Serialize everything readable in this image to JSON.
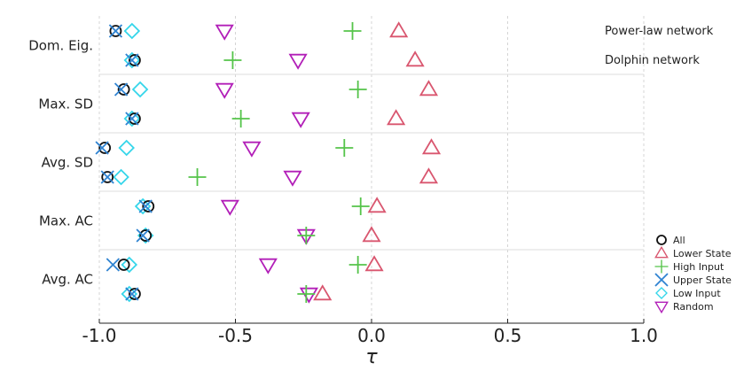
{
  "chart_data": {
    "type": "scatter",
    "title": "",
    "xlabel": "τ",
    "xlim": [
      -1.0,
      1.0
    ],
    "xticks": [
      -1.0,
      -0.5,
      0.0,
      0.5,
      1.0
    ],
    "xtick_labels": [
      "-1.0",
      "-0.5",
      "0.0",
      "0.5",
      "1.0"
    ],
    "grid": "vertical dashed",
    "legend_position": "bottom-right",
    "panel_labels": [
      "Power-law network",
      "Dolphin network"
    ],
    "categories": [
      "Dom. Eig.",
      "Max. SD",
      "Avg. SD",
      "Max. AC",
      "Avg. AC"
    ],
    "networks": [
      "Power-law network",
      "Dolphin network"
    ],
    "series": [
      {
        "name": "All",
        "marker": "circle",
        "color": "#111111",
        "values": {
          "Dom. Eig.": [
            -0.94,
            -0.87
          ],
          "Max. SD": [
            -0.91,
            -0.87
          ],
          "Avg. SD": [
            -0.98,
            -0.97
          ],
          "Max. AC": [
            -0.82,
            -0.83
          ],
          "Avg. AC": [
            -0.91,
            -0.87
          ]
        }
      },
      {
        "name": "Lower State",
        "marker": "triangle-up",
        "color": "#d9566f",
        "values": {
          "Dom. Eig.": [
            0.1,
            0.16
          ],
          "Max. SD": [
            0.21,
            0.09
          ],
          "Avg. SD": [
            0.22,
            0.21
          ],
          "Max. AC": [
            0.02,
            0.0
          ],
          "Avg. AC": [
            0.01,
            -0.18
          ]
        }
      },
      {
        "name": "High Input",
        "marker": "plus",
        "color": "#55c44a",
        "values": {
          "Dom. Eig.": [
            -0.07,
            -0.51
          ],
          "Max. SD": [
            -0.05,
            -0.48
          ],
          "Avg. SD": [
            -0.1,
            -0.64
          ],
          "Max. AC": [
            -0.04,
            -0.24
          ],
          "Avg. AC": [
            -0.05,
            -0.24
          ]
        }
      },
      {
        "name": "Upper State",
        "marker": "x",
        "color": "#2f83d1",
        "values": {
          "Dom. Eig.": [
            -0.94,
            -0.88
          ],
          "Max. SD": [
            -0.92,
            -0.88
          ],
          "Avg. SD": [
            -0.99,
            -0.97
          ],
          "Max. AC": [
            -0.83,
            -0.84
          ],
          "Avg. AC": [
            -0.95,
            -0.88
          ]
        }
      },
      {
        "name": "Low Input",
        "marker": "diamond",
        "color": "#35d6ea",
        "values": {
          "Dom. Eig.": [
            -0.88,
            -0.88
          ],
          "Max. SD": [
            -0.85,
            -0.88
          ],
          "Avg. SD": [
            -0.9,
            -0.92
          ],
          "Max. AC": [
            -0.84,
            -0.83
          ],
          "Avg. AC": [
            -0.89,
            -0.89
          ]
        }
      },
      {
        "name": "Random",
        "marker": "triangle-down",
        "color": "#b21fb8",
        "values": {
          "Dom. Eig.": [
            -0.54,
            -0.27
          ],
          "Max. SD": [
            -0.54,
            -0.26
          ],
          "Avg. SD": [
            -0.44,
            -0.29
          ],
          "Max. AC": [
            -0.52,
            -0.24
          ],
          "Avg. AC": [
            -0.38,
            -0.23
          ]
        }
      }
    ]
  }
}
